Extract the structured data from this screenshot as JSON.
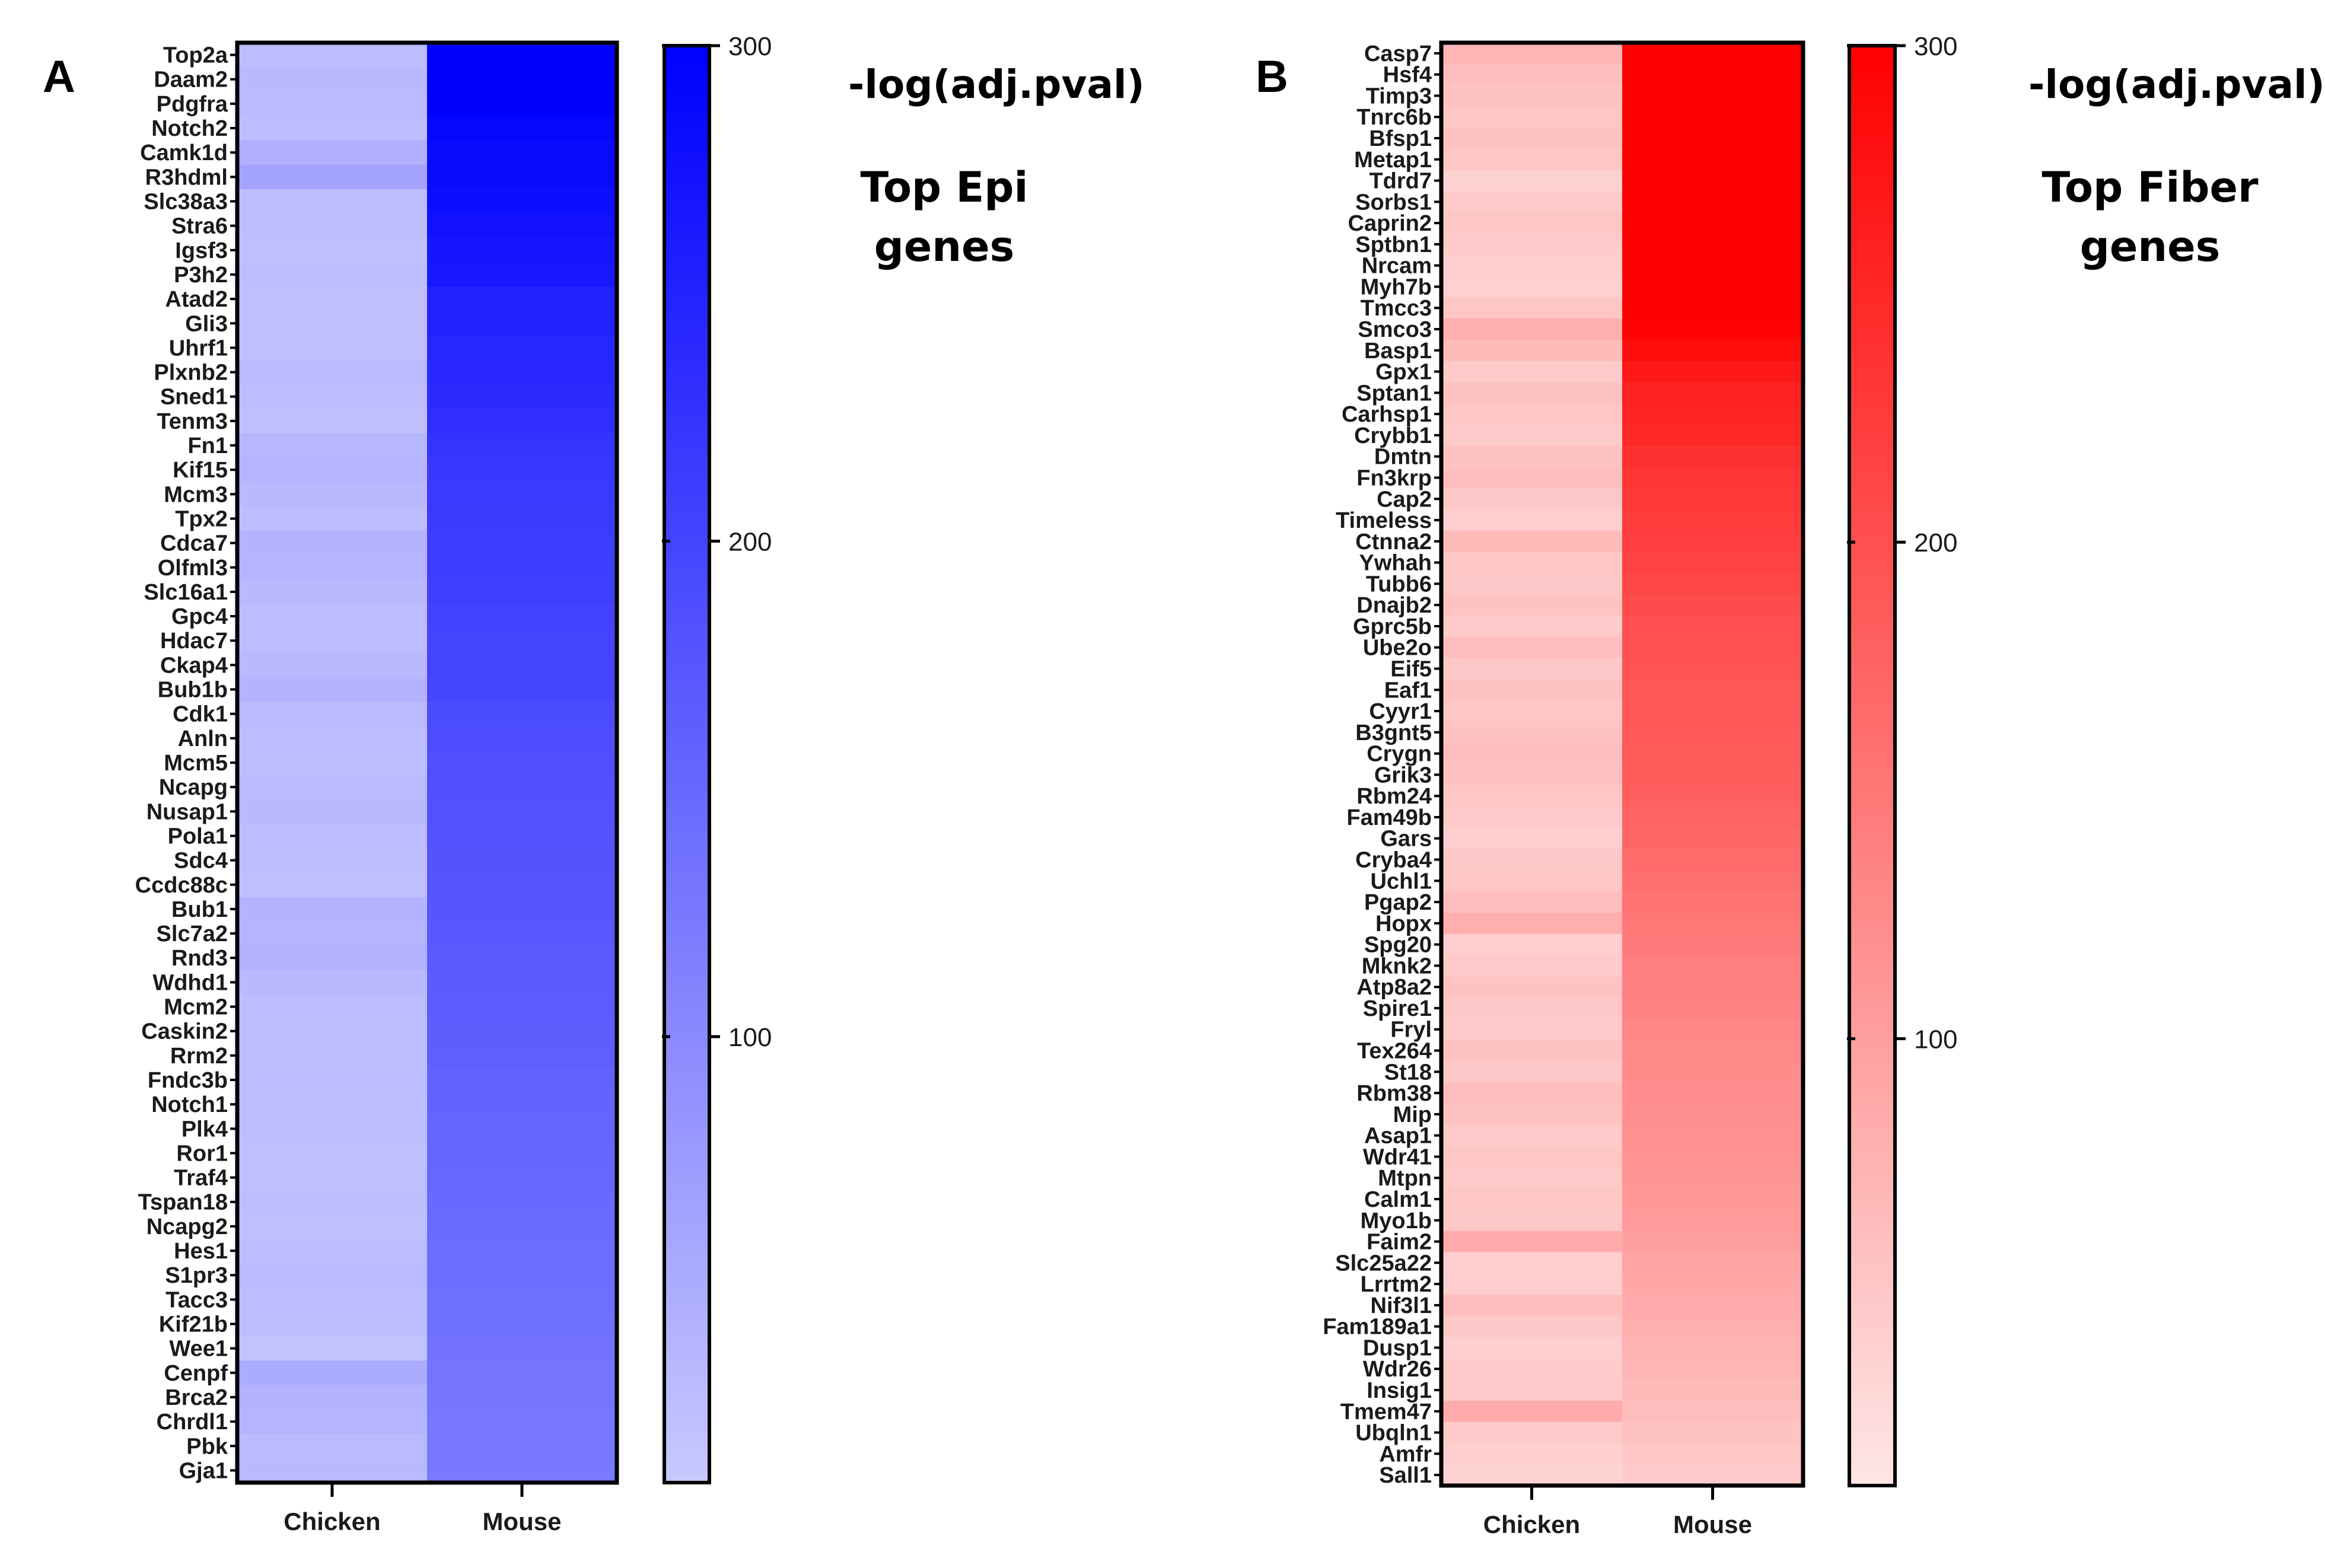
{
  "chart_data": [
    {
      "type": "heatmap",
      "panel_label": "A",
      "colorbar_title": "-log(adj.pval)",
      "subtitle_lines": [
        "Top Epi",
        "genes"
      ],
      "columns": [
        "Chicken",
        "Mouse"
      ],
      "colorbar_ticks": [
        "300",
        "200",
        "100"
      ],
      "colorbar_tick_values": [
        300,
        200,
        100
      ],
      "colorbar_range": [
        10,
        300
      ],
      "low_color": "#c8c8ff",
      "high_color": "#0000ff",
      "rows": [
        "Top2a",
        "Daam2",
        "Pdgfra",
        "Notch2",
        "Camk1d",
        "R3hdml",
        "Slc38a3",
        "Stra6",
        "Igsf3",
        "P3h2",
        "Atad2",
        "Gli3",
        "Uhrf1",
        "Plxnb2",
        "Sned1",
        "Tenm3",
        "Fn1",
        "Kif15",
        "Mcm3",
        "Tpx2",
        "Cdca7",
        "Olfml3",
        "Slc16a1",
        "Gpc4",
        "Hdac7",
        "Ckap4",
        "Bub1b",
        "Cdk1",
        "Anln",
        "Mcm5",
        "Ncapg",
        "Nusap1",
        "Pola1",
        "Sdc4",
        "Ccdc88c",
        "Bub1",
        "Slc7a2",
        "Rnd3",
        "Wdhd1",
        "Mcm2",
        "Caskin2",
        "Rrm2",
        "Fndc3b",
        "Notch1",
        "Plk4",
        "Ror1",
        "Traf4",
        "Tspan18",
        "Ncapg2",
        "Hes1",
        "S1pr3",
        "Tacc3",
        "Kif21b",
        "Wee1",
        "Cenpf",
        "Brca2",
        "Chrdl1",
        "Pbk",
        "Gja1"
      ],
      "chicken": [
        28,
        32,
        30,
        28,
        45,
        62,
        25,
        25,
        22,
        25,
        22,
        22,
        22,
        30,
        28,
        22,
        35,
        38,
        32,
        28,
        40,
        38,
        32,
        28,
        28,
        32,
        40,
        30,
        28,
        25,
        30,
        32,
        28,
        25,
        22,
        40,
        38,
        42,
        32,
        28,
        25,
        25,
        28,
        25,
        25,
        22,
        22,
        25,
        22,
        28,
        30,
        28,
        25,
        18,
        52,
        42,
        38,
        30,
        32
      ],
      "mouse": [
        300,
        300,
        300,
        290,
        285,
        285,
        280,
        275,
        270,
        265,
        250,
        250,
        245,
        240,
        238,
        232,
        225,
        220,
        218,
        215,
        212,
        210,
        208,
        205,
        202,
        200,
        198,
        190,
        188,
        186,
        184,
        182,
        180,
        178,
        176,
        175,
        172,
        170,
        168,
        166,
        164,
        162,
        158,
        156,
        154,
        152,
        150,
        148,
        146,
        144,
        142,
        140,
        138,
        135,
        132,
        130,
        128,
        126,
        124
      ]
    },
    {
      "type": "heatmap",
      "panel_label": "B",
      "colorbar_title": "-log(adj.pval)",
      "subtitle_lines": [
        "Top Fiber",
        "genes"
      ],
      "columns": [
        "Chicken",
        "Mouse"
      ],
      "colorbar_ticks": [
        "300",
        "200",
        "100"
      ],
      "colorbar_tick_values": [
        300,
        200,
        100
      ],
      "colorbar_range": [
        10,
        300
      ],
      "low_color": "#ffe6e6",
      "high_color": "#ff0000",
      "rows": [
        "Casp7",
        "Hsf4",
        "Timp3",
        "Tnrc6b",
        "Bfsp1",
        "Metap1",
        "Tdrd7",
        "Sorbs1",
        "Caprin2",
        "Sptbn1",
        "Nrcam",
        "Myh7b",
        "Tmcc3",
        "Smco3",
        "Basp1",
        "Gpx1",
        "Sptan1",
        "Carhsp1",
        "Crybb1",
        "Dmtn",
        "Fn3krp",
        "Cap2",
        "Timeless",
        "Ctnna2",
        "Ywhah",
        "Tubb6",
        "Dnajb2",
        "Gprc5b",
        "Ube2o",
        "Eif5",
        "Eaf1",
        "Cyyr1",
        "B3gnt5",
        "Crygn",
        "Grik3",
        "Rbm24",
        "Fam49b",
        "Gars",
        "Cryba4",
        "Uchl1",
        "Pgap2",
        "Hopx",
        "Spg20",
        "Mknk2",
        "Atp8a2",
        "Spire1",
        "Fryl",
        "Tex264",
        "St18",
        "Rbm38",
        "Mip",
        "Asap1",
        "Wdr41",
        "Mtpn",
        "Calm1",
        "Myo1b",
        "Faim2",
        "Slc25a22",
        "Lrrtm2",
        "Nif3l1",
        "Fam189a1",
        "Dusp1",
        "Wdr26",
        "Insig1",
        "Tmem47",
        "Ubqln1",
        "Amfr",
        "Sall1"
      ],
      "chicken": [
        70,
        60,
        55,
        50,
        55,
        50,
        35,
        45,
        50,
        45,
        40,
        38,
        50,
        80,
        65,
        45,
        55,
        50,
        45,
        55,
        60,
        48,
        40,
        65,
        50,
        48,
        55,
        45,
        60,
        48,
        55,
        50,
        55,
        60,
        58,
        50,
        45,
        40,
        48,
        50,
        60,
        80,
        40,
        45,
        55,
        48,
        45,
        55,
        48,
        60,
        55,
        45,
        50,
        45,
        50,
        48,
        85,
        40,
        42,
        60,
        48,
        40,
        45,
        45,
        85,
        45,
        40,
        35
      ],
      "mouse": [
        300,
        300,
        300,
        300,
        300,
        300,
        300,
        300,
        300,
        300,
        300,
        300,
        300,
        295,
        285,
        270,
        260,
        255,
        248,
        240,
        235,
        230,
        225,
        220,
        215,
        210,
        205,
        200,
        198,
        195,
        192,
        190,
        188,
        186,
        184,
        180,
        175,
        170,
        165,
        160,
        155,
        150,
        145,
        140,
        138,
        135,
        130,
        128,
        125,
        122,
        120,
        118,
        115,
        112,
        110,
        105,
        100,
        95,
        90,
        85,
        80,
        75,
        70,
        65,
        60,
        55,
        50,
        45
      ]
    }
  ]
}
